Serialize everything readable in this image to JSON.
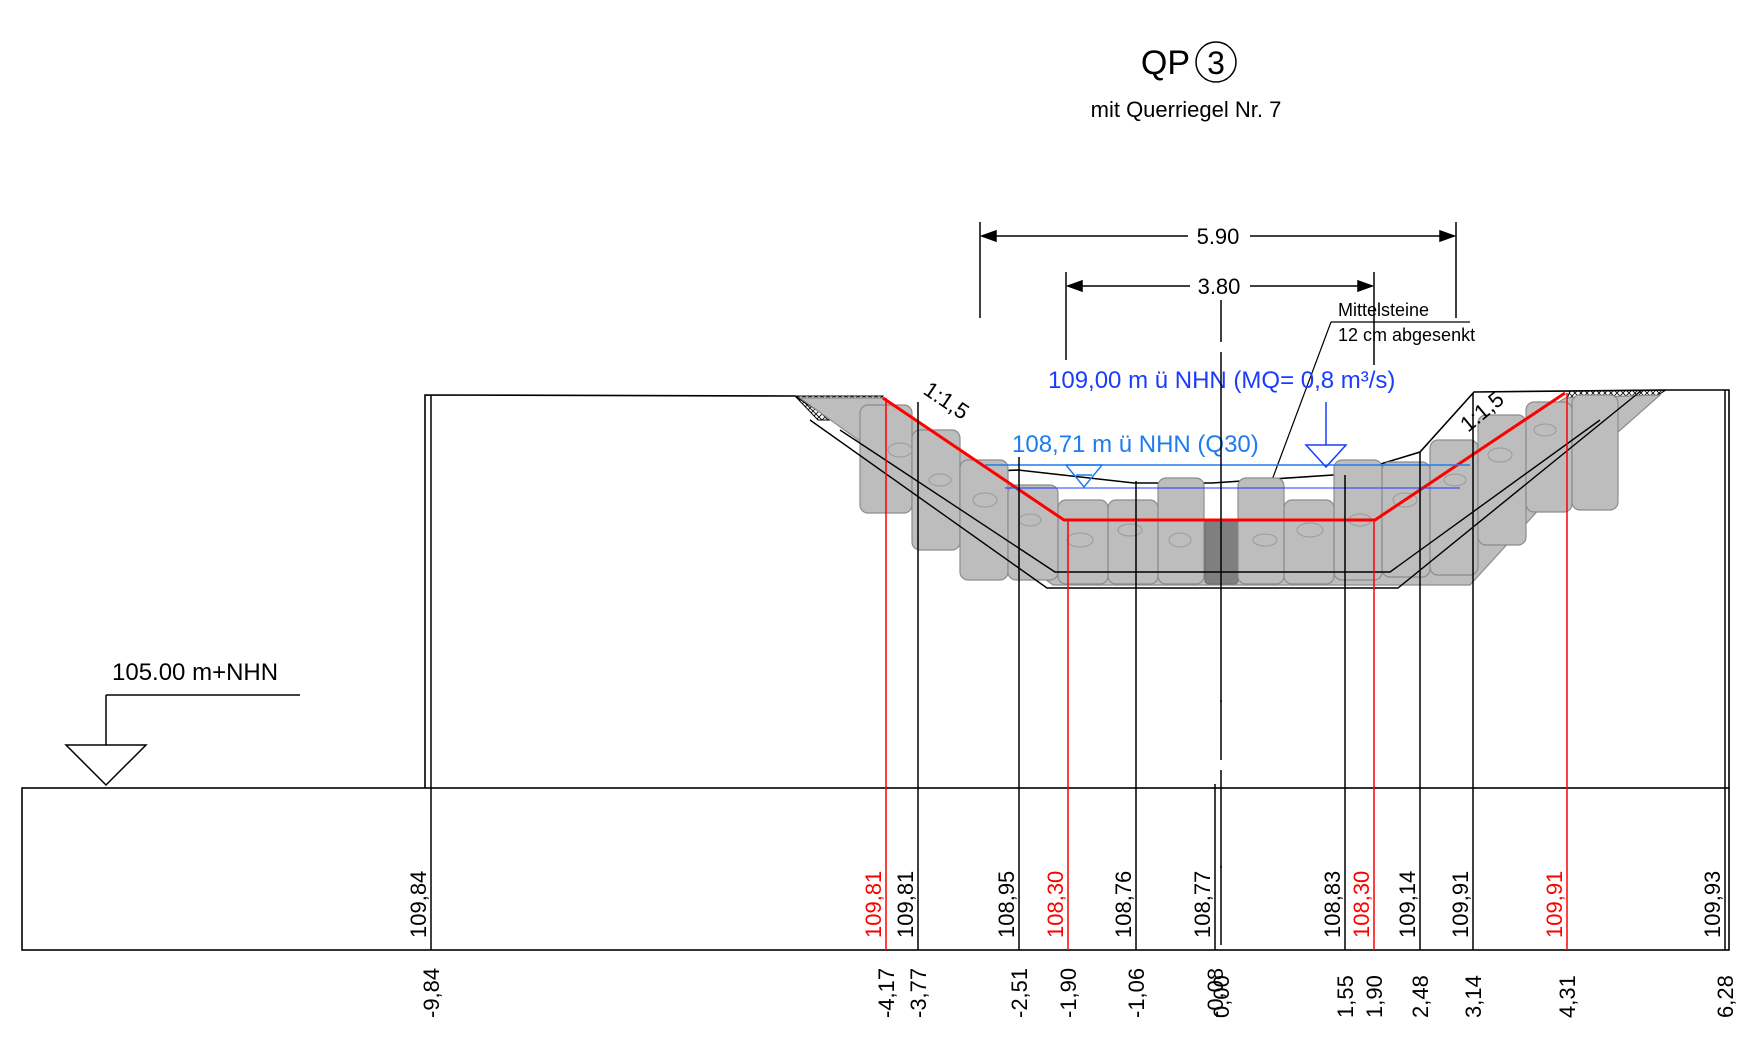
{
  "title": {
    "code": "QP",
    "number": "3",
    "subtitle": "mit Querriegel Nr. 7"
  },
  "dimensions": {
    "outer": "5.90",
    "inner": "3.80"
  },
  "annotations": {
    "mittelsteine_line1": "Mittelsteine",
    "mittelsteine_line2": "12 cm abgesenkt",
    "water_mq": "109,00 m ü NHN (MQ= 0,8 m³/s)",
    "water_q30": "108,71 m ü NHN (Q30)",
    "slope_left": "1:1,5",
    "slope_right": "1:1,5",
    "datum": "105.00 m+NHN"
  },
  "colors": {
    "line": "#000000",
    "design": "#ff0000",
    "water_mq": "#1a3cff",
    "water_q30": "#1e7cf0",
    "stone_fill": "#bdbdbd",
    "stone_stroke": "#8c8c8c",
    "axis_block": "#7f7f7f"
  },
  "stations": [
    {
      "station": "-9,84",
      "height": "109,84",
      "kind": "existing"
    },
    {
      "station": "-4,17",
      "height": "109,81",
      "kind": "design"
    },
    {
      "station": "-3,77",
      "height": "109,81",
      "kind": "existing"
    },
    {
      "station": "-2,51",
      "height": "108,95",
      "kind": "existing"
    },
    {
      "station": "-1,90",
      "height": "108,30",
      "kind": "design"
    },
    {
      "station": "-1,06",
      "height": "108,76",
      "kind": "existing"
    },
    {
      "station": "-0,08",
      "height": "108,77",
      "kind": "existing"
    },
    {
      "station": "0,00",
      "height": "",
      "kind": "axis"
    },
    {
      "station": "1,55",
      "height": "108,83",
      "kind": "existing"
    },
    {
      "station": "1,90",
      "height": "108,30",
      "kind": "design"
    },
    {
      "station": "2,48",
      "height": "109,14",
      "kind": "existing"
    },
    {
      "station": "3,14",
      "height": "109,91",
      "kind": "existing"
    },
    {
      "station": "4,31",
      "height": "109,91",
      "kind": "design"
    },
    {
      "station": "6,28",
      "height": "109,93",
      "kind": "existing"
    }
  ]
}
